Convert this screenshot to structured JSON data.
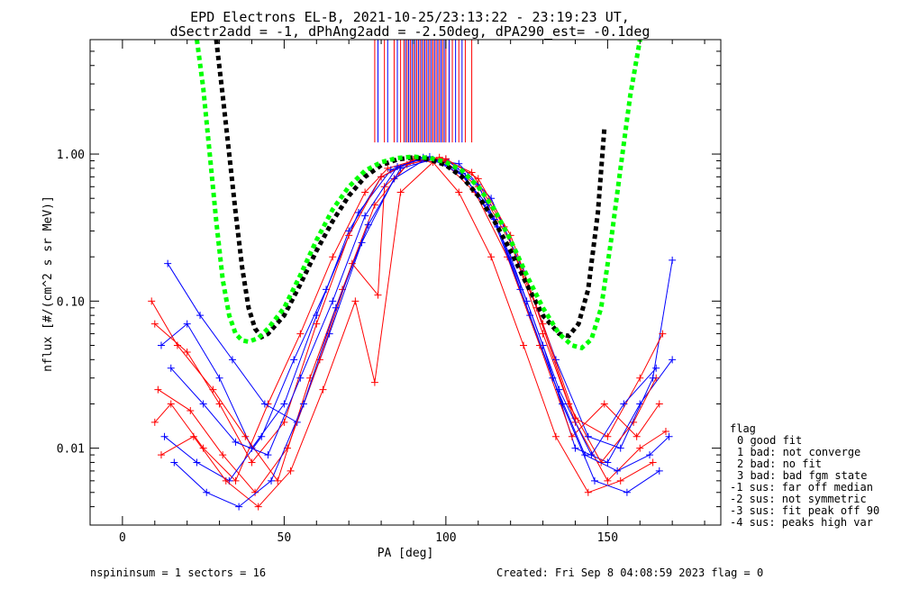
{
  "title_line1": "EPD Electrons EL-B, 2021-10-25/23:13:22 - 23:19:23 UT,",
  "title_line2": "dSectr2add = -1, dPhAng2add = -2.50deg, dPA290_est=  -0.1deg",
  "footer": {
    "left": "nspininsum =  1  sectors = 16",
    "right": "Created: Fri Sep  8 04:08:59 2023   flag = 0"
  },
  "legend": {
    "title": "flag",
    "items": [
      "0 good fit",
      "1 bad: not converge",
      "2 bad: no fit",
      "3 bad: bad fgm state",
      "-1 sus: far off median",
      "-2 sus: not symmetric",
      "-3 sus: fit peak off 90",
      "-4 sus: peaks high var"
    ]
  },
  "colors": {
    "series_red": "#ff0000",
    "series_blue": "#0000ff",
    "fit_black": "#000000",
    "fit_green": "#00ff00"
  },
  "chart_data": {
    "type": "line",
    "xlabel": "PA [deg]",
    "ylabel": "nflux [#/(cm^2 s sr MeV)]",
    "xlim": [
      -10,
      185
    ],
    "ylim": [
      0.003,
      6.0
    ],
    "yscale": "log",
    "xticks": [
      0,
      50,
      100,
      150
    ],
    "xtick_labels": [
      "0",
      "50",
      "100",
      "150"
    ],
    "yticks": [
      0.01,
      0.1,
      1.0
    ],
    "ytick_labels": [
      "0.01",
      "0.10",
      "1.00"
    ],
    "series": [
      {
        "color": "black",
        "style": "dashed",
        "x": [
          29,
          31,
          33,
          35,
          37,
          39,
          41,
          43,
          45,
          50,
          55,
          60,
          65,
          70,
          75,
          80,
          85,
          90,
          95,
          100,
          105,
          110,
          115,
          120,
          125,
          130,
          135,
          138,
          141,
          144,
          147,
          149
        ],
        "y": [
          6,
          2.5,
          1.0,
          0.4,
          0.17,
          0.09,
          0.065,
          0.057,
          0.06,
          0.08,
          0.13,
          0.22,
          0.35,
          0.52,
          0.7,
          0.84,
          0.92,
          0.95,
          0.92,
          0.84,
          0.7,
          0.52,
          0.35,
          0.22,
          0.13,
          0.08,
          0.06,
          0.058,
          0.07,
          0.12,
          0.4,
          1.5
        ]
      },
      {
        "color": "green",
        "style": "dashed",
        "x": [
          23,
          25,
          27,
          29,
          31,
          33,
          35,
          37,
          39,
          42,
          45,
          50,
          55,
          60,
          65,
          70,
          75,
          80,
          85,
          90,
          95,
          100,
          105,
          110,
          115,
          120,
          125,
          130,
          135,
          139,
          142,
          145,
          148,
          151,
          154,
          157,
          160
        ],
        "y": [
          6,
          2.8,
          1.0,
          0.35,
          0.14,
          0.08,
          0.06,
          0.054,
          0.053,
          0.056,
          0.065,
          0.09,
          0.15,
          0.26,
          0.42,
          0.6,
          0.77,
          0.88,
          0.94,
          0.96,
          0.94,
          0.88,
          0.77,
          0.6,
          0.42,
          0.26,
          0.15,
          0.09,
          0.06,
          0.05,
          0.048,
          0.055,
          0.09,
          0.25,
          0.8,
          2.5,
          6
        ]
      }
    ],
    "sample_traces": [
      {
        "color": "red",
        "x": [
          10,
          15,
          25,
          35,
          45,
          55,
          65,
          75,
          82,
          90,
          100,
          110,
          120,
          130,
          140,
          150,
          160,
          168
        ],
        "y": [
          0.015,
          0.02,
          0.01,
          0.006,
          0.02,
          0.06,
          0.2,
          0.55,
          0.8,
          0.9,
          0.88,
          0.6,
          0.25,
          0.06,
          0.015,
          0.006,
          0.01,
          0.013
        ]
      },
      {
        "color": "blue",
        "x": [
          12,
          20,
          30,
          40,
          50,
          60,
          70,
          80,
          90,
          100,
          110,
          120,
          130,
          140,
          150,
          160,
          170
        ],
        "y": [
          0.05,
          0.07,
          0.03,
          0.01,
          0.02,
          0.08,
          0.3,
          0.7,
          0.9,
          0.92,
          0.62,
          0.2,
          0.05,
          0.01,
          0.008,
          0.02,
          0.04
        ]
      },
      {
        "color": "red",
        "x": [
          9,
          17,
          28,
          38,
          48,
          58,
          68,
          78,
          88,
          98,
          108,
          118,
          128,
          138,
          148,
          158,
          165
        ],
        "y": [
          0.1,
          0.05,
          0.025,
          0.012,
          0.006,
          0.03,
          0.12,
          0.45,
          0.85,
          0.95,
          0.75,
          0.32,
          0.09,
          0.02,
          0.008,
          0.015,
          0.03
        ]
      },
      {
        "color": "blue",
        "x": [
          14,
          24,
          34,
          44,
          54,
          64,
          74,
          84,
          94,
          104,
          114,
          124,
          134,
          144,
          154,
          164,
          170
        ],
        "y": [
          0.18,
          0.08,
          0.04,
          0.02,
          0.015,
          0.06,
          0.25,
          0.68,
          0.93,
          0.86,
          0.5,
          0.16,
          0.04,
          0.012,
          0.01,
          0.03,
          0.19
        ]
      },
      {
        "color": "red",
        "x": [
          11,
          21,
          31,
          41,
          51,
          61,
          71,
          79,
          81,
          90,
          99,
          109,
          119,
          129,
          139,
          149,
          159,
          166
        ],
        "y": [
          0.025,
          0.018,
          0.009,
          0.005,
          0.01,
          0.04,
          0.18,
          0.11,
          0.6,
          0.92,
          0.9,
          0.55,
          0.2,
          0.05,
          0.012,
          0.02,
          0.012,
          0.02
        ]
      },
      {
        "color": "blue",
        "x": [
          13,
          23,
          33,
          43,
          53,
          63,
          73,
          83,
          93,
          103,
          113,
          123,
          133,
          143,
          153,
          163,
          169
        ],
        "y": [
          0.012,
          0.008,
          0.006,
          0.012,
          0.04,
          0.12,
          0.4,
          0.78,
          0.95,
          0.8,
          0.45,
          0.12,
          0.03,
          0.009,
          0.007,
          0.009,
          0.012
        ]
      },
      {
        "color": "red",
        "x": [
          10,
          20,
          30,
          40,
          50,
          60,
          70,
          80,
          90,
          100,
          110,
          120,
          130,
          140,
          150,
          160,
          167
        ],
        "y": [
          0.07,
          0.045,
          0.02,
          0.008,
          0.015,
          0.07,
          0.28,
          0.7,
          0.92,
          0.93,
          0.68,
          0.28,
          0.07,
          0.016,
          0.012,
          0.03,
          0.06
        ]
      },
      {
        "color": "blue",
        "x": [
          15,
          25,
          35,
          45,
          55,
          65,
          75,
          85,
          95,
          105,
          115,
          125,
          135,
          145,
          155,
          165
        ],
        "y": [
          0.035,
          0.02,
          0.011,
          0.009,
          0.03,
          0.1,
          0.38,
          0.82,
          0.96,
          0.74,
          0.36,
          0.1,
          0.025,
          0.009,
          0.02,
          0.035
        ]
      },
      {
        "color": "red",
        "x": [
          12,
          22,
          32,
          42,
          52,
          62,
          72,
          78,
          86,
          96,
          104,
          114,
          124,
          134,
          144,
          154,
          164
        ],
        "y": [
          0.009,
          0.012,
          0.006,
          0.004,
          0.007,
          0.025,
          0.1,
          0.028,
          0.55,
          0.88,
          0.55,
          0.2,
          0.05,
          0.012,
          0.005,
          0.006,
          0.008
        ]
      },
      {
        "color": "blue",
        "x": [
          16,
          26,
          36,
          46,
          56,
          66,
          76,
          86,
          96,
          106,
          116,
          126,
          136,
          146,
          156,
          166
        ],
        "y": [
          0.008,
          0.005,
          0.004,
          0.006,
          0.02,
          0.09,
          0.33,
          0.8,
          0.92,
          0.7,
          0.32,
          0.08,
          0.02,
          0.006,
          0.005,
          0.007
        ]
      }
    ],
    "vertical_markers": {
      "y_range": [
        1.2,
        6.0
      ],
      "red": [
        78,
        81,
        84,
        86,
        87,
        88,
        89,
        90,
        91,
        92,
        93,
        94,
        95,
        96,
        97,
        98,
        99,
        100,
        101,
        102,
        104,
        106,
        108
      ],
      "blue": [
        79,
        82,
        85,
        87.5,
        88.5,
        89.5,
        90.5,
        91.5,
        92.5,
        93.5,
        94.5,
        95.5,
        96.5,
        97.5,
        98.5,
        99.5,
        101,
        103,
        105
      ]
    }
  }
}
